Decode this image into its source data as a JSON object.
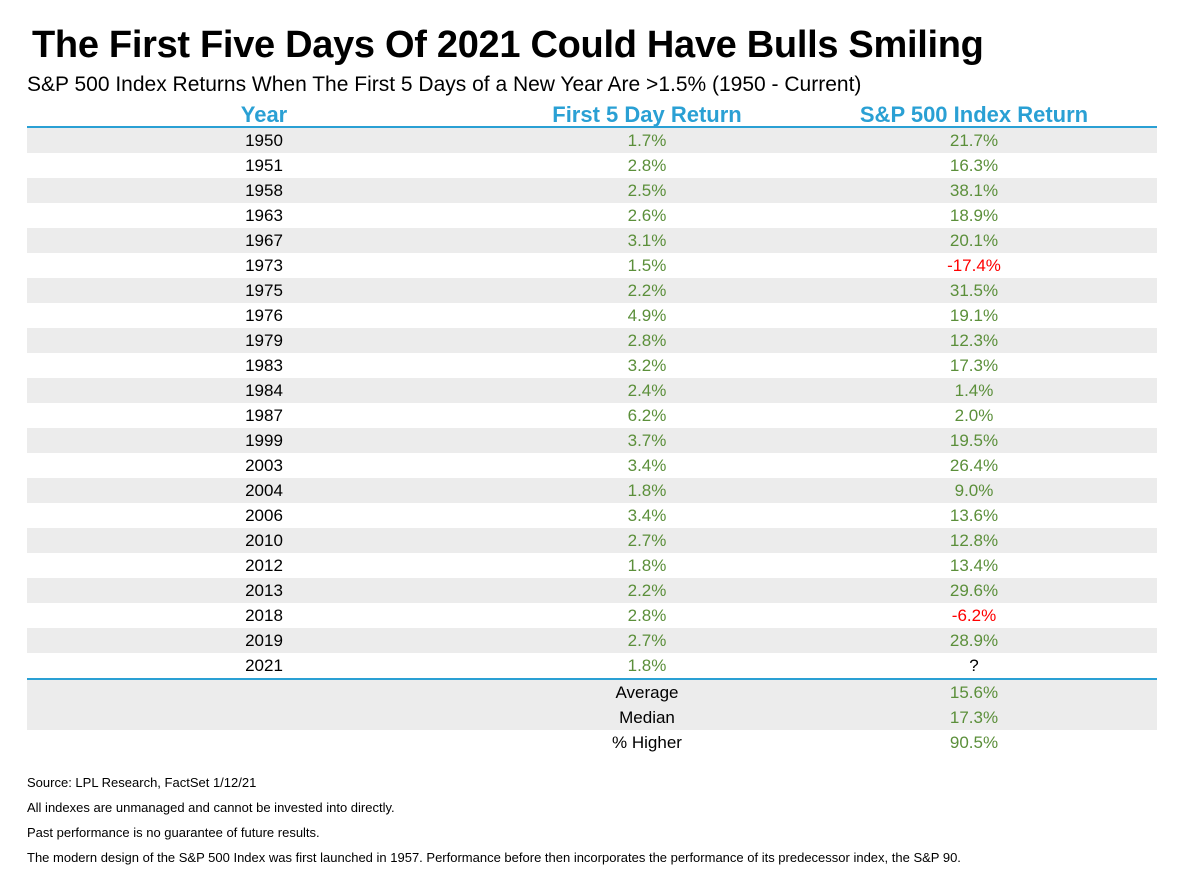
{
  "title": "The First Five Days Of 2021 Could Have Bulls Smiling",
  "subtitle": "S&P 500 Index Returns When The First 5 Days of a New Year Are >1.5% (1950 - Current)",
  "colors": {
    "header": "#2aa0d4",
    "positive": "#5b8f3a",
    "negative": "#ff0000",
    "shade": "#ececec"
  },
  "chart_data": {
    "type": "table",
    "columns": [
      "Year",
      "First 5 Day Return",
      "S&P 500 Index Return"
    ],
    "rows": [
      [
        "1950",
        "1.7%",
        "21.7%"
      ],
      [
        "1951",
        "2.8%",
        "16.3%"
      ],
      [
        "1958",
        "2.5%",
        "38.1%"
      ],
      [
        "1963",
        "2.6%",
        "18.9%"
      ],
      [
        "1967",
        "3.1%",
        "20.1%"
      ],
      [
        "1973",
        "1.5%",
        "-17.4%"
      ],
      [
        "1975",
        "2.2%",
        "31.5%"
      ],
      [
        "1976",
        "4.9%",
        "19.1%"
      ],
      [
        "1979",
        "2.8%",
        "12.3%"
      ],
      [
        "1983",
        "3.2%",
        "17.3%"
      ],
      [
        "1984",
        "2.4%",
        "1.4%"
      ],
      [
        "1987",
        "6.2%",
        "2.0%"
      ],
      [
        "1999",
        "3.7%",
        "19.5%"
      ],
      [
        "2003",
        "3.4%",
        "26.4%"
      ],
      [
        "2004",
        "1.8%",
        "9.0%"
      ],
      [
        "2006",
        "3.4%",
        "13.6%"
      ],
      [
        "2010",
        "2.7%",
        "12.8%"
      ],
      [
        "2012",
        "1.8%",
        "13.4%"
      ],
      [
        "2013",
        "2.2%",
        "29.6%"
      ],
      [
        "2018",
        "2.8%",
        "-6.2%"
      ],
      [
        "2019",
        "2.7%",
        "28.9%"
      ],
      [
        "2021",
        "1.8%",
        "?"
      ]
    ],
    "summary": [
      [
        "Average",
        "15.6%"
      ],
      [
        "Median",
        "17.3%"
      ],
      [
        "% Higher",
        "90.5%"
      ]
    ]
  },
  "notes": [
    "Source: LPL Research, FactSet 1/12/21",
    "All indexes are unmanaged and cannot be invested into directly.",
    "Past performance is no guarantee of future results.",
    "The modern design of the S&P 500 Index was first launched in 1957. Performance before then incorporates the performance of its predecessor index, the S&P 90."
  ]
}
